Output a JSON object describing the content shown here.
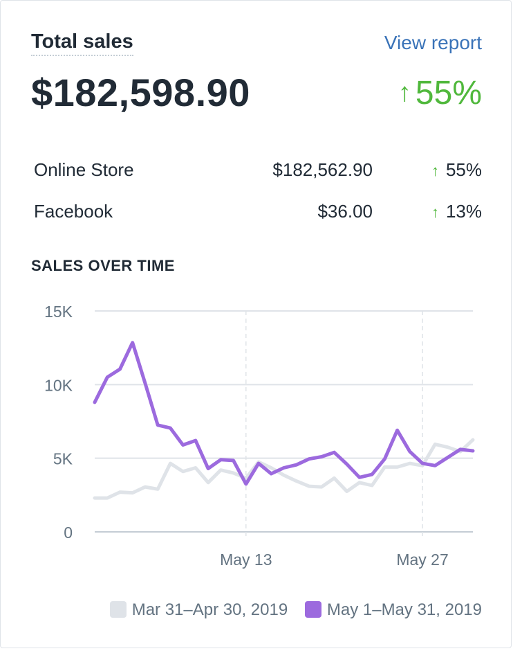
{
  "card": {
    "title": "Total sales",
    "view_report": "View report",
    "total_value": "$182,598.90",
    "total_change_arrow": "↑",
    "total_change": "55%"
  },
  "channels": [
    {
      "name": "Online Store",
      "value": "$182,562.90",
      "arrow": "↑",
      "change": "55%"
    },
    {
      "name": "Facebook",
      "value": "$36.00",
      "arrow": "↑",
      "change": "13%"
    }
  ],
  "section_title": "SALES OVER TIME",
  "colors": {
    "current": "#9c6ade",
    "previous": "#dfe3e8",
    "positive": "#50b83c",
    "link": "#3a73b8"
  },
  "chart_data": {
    "type": "line",
    "x": [
      "May 1",
      "May 2",
      "May 3",
      "May 4",
      "May 5",
      "May 6",
      "May 7",
      "May 8",
      "May 9",
      "May 10",
      "May 11",
      "May 12",
      "May 13",
      "May 14",
      "May 15",
      "May 16",
      "May 17",
      "May 18",
      "May 19",
      "May 20",
      "May 21",
      "May 22",
      "May 23",
      "May 24",
      "May 25",
      "May 26",
      "May 27",
      "May 28",
      "May 29",
      "May 30",
      "May 31"
    ],
    "x_tick_labels": [
      "May 13",
      "May 27"
    ],
    "y_tick_labels": [
      "0",
      "5K",
      "10K",
      "15K"
    ],
    "ylim": [
      0,
      15000
    ],
    "grid": true,
    "legend_position": "bottom-right",
    "series": [
      {
        "name": "Mar 31–Apr 30, 2019",
        "color": "#dfe3e8",
        "values": [
          2300,
          2300,
          2700,
          2650,
          3050,
          2900,
          4650,
          4100,
          4350,
          3350,
          4200,
          4000,
          3650,
          4750,
          4350,
          3850,
          3450,
          3100,
          3050,
          3650,
          2750,
          3350,
          3150,
          4400,
          4400,
          4650,
          4500,
          5950,
          5750,
          5450,
          6250
        ]
      },
      {
        "name": "May 1–May 31, 2019",
        "color": "#9c6ade",
        "values": [
          8800,
          10500,
          11050,
          12850,
          10100,
          7250,
          7050,
          5900,
          6200,
          4300,
          4900,
          4850,
          3250,
          4650,
          3950,
          4350,
          4550,
          4950,
          5100,
          5400,
          4600,
          3700,
          3900,
          4950,
          6900,
          5450,
          4650,
          4500,
          5050,
          5600,
          5500
        ]
      }
    ]
  }
}
